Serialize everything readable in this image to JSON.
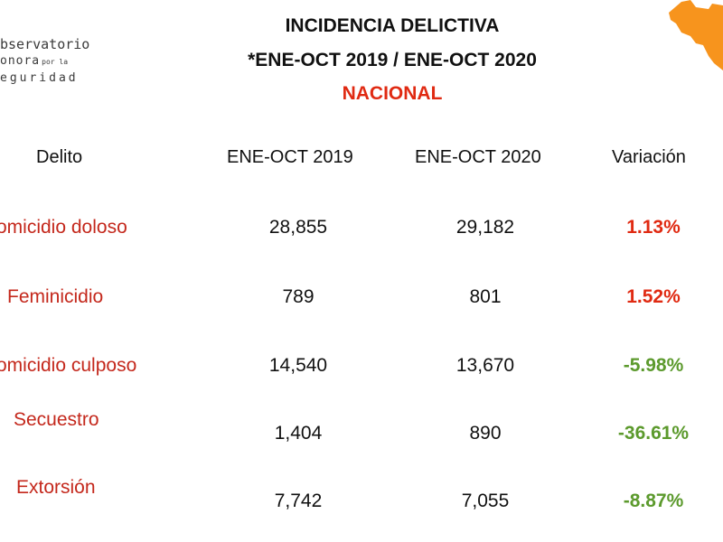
{
  "logo": {
    "line1": "bservatorio",
    "line2": "onora",
    "line2_small": "por la",
    "line3": "eguridad"
  },
  "title": {
    "line1": "INCIDENCIA DELICTIVA",
    "line2": "*ENE-OCT 2019 / ENE-OCT 2020",
    "line3": "NACIONAL"
  },
  "colors": {
    "title_accent": "#e02a12",
    "crime_label": "#c4281c",
    "positive_variation": "#e02a12",
    "negative_variation": "#5c9a2d",
    "map_orange": "#f7941d"
  },
  "table": {
    "headers": [
      "Delito",
      "ENE-OCT 2019",
      "ENE-OCT 2020",
      "Variación"
    ],
    "rows": [
      {
        "crime": "omicidio doloso",
        "y2019": "28,855",
        "y2020": "29,182",
        "variation": "1.13%"
      },
      {
        "crime": "Feminicidio",
        "y2019": "789",
        "y2020": "801",
        "variation": "1.52%"
      },
      {
        "crime": "omicidio culposo",
        "y2019": "14,540",
        "y2020": "13,670",
        "variation": "-5.98%"
      },
      {
        "crime": "Secuestro",
        "y2019": "1,404",
        "y2020": "890",
        "variation": "-36.61%"
      },
      {
        "crime": "Extorsión",
        "y2019": "7,742",
        "y2020": "7,055",
        "variation": "-8.87%"
      }
    ]
  }
}
